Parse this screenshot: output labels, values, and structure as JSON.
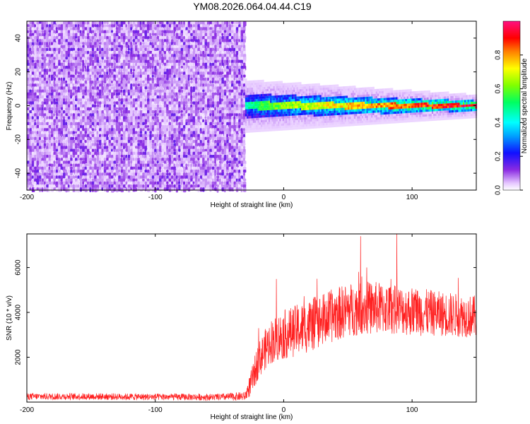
{
  "title": "YM08.2026.064.04.44.C19",
  "colors": {
    "snr_line": "#ff2020",
    "axis": "#000000"
  },
  "chart_data": [
    {
      "type": "heatmap",
      "name": "spectrogram",
      "xlabel": "Height of straight line (km)",
      "ylabel": "Frequency (Hz)",
      "xlim": [
        -200,
        150
      ],
      "ylim": [
        -50,
        50
      ],
      "xticks": [
        -200,
        -100,
        0,
        100
      ],
      "xtick_labels": [
        "-200",
        "-100",
        "0",
        "100"
      ],
      "yticks": [
        -40,
        -20,
        0,
        20,
        40
      ],
      "ytick_labels": [
        "-40",
        "-20",
        "0",
        "20",
        "40"
      ],
      "noise_region_x": [
        -200,
        -30
      ],
      "signal_region_x": [
        -30,
        150
      ],
      "signal_center_freq_hz": 0,
      "signal_start_amplitude": 0.45,
      "signal_end_amplitude": 0.98,
      "noise_amplitude_range": [
        0.0,
        0.15
      ],
      "colorbar": {
        "label": "Normalized spectral amplitude",
        "range": [
          0,
          1
        ],
        "ticks": [
          0.0,
          0.2,
          0.4,
          0.6,
          0.8
        ],
        "tick_labels": [
          "0.0",
          "0.2",
          "0.4",
          "0.6",
          "0.8"
        ],
        "colormap": "hsv-reversed (white, violet, blue, cyan, green, yellow, orange, red, magenta)"
      }
    },
    {
      "type": "line",
      "name": "snr",
      "xlabel": "Height of straight line (km)",
      "ylabel": "SNR (10 * v/v)",
      "xlim": [
        -200,
        150
      ],
      "ylim": [
        0,
        7500
      ],
      "xticks": [
        -200,
        -100,
        0,
        100
      ],
      "xtick_labels": [
        "-200",
        "-100",
        "0",
        "100"
      ],
      "yticks": [
        2000,
        4000,
        6000
      ],
      "ytick_labels": [
        "2000",
        "4000",
        "6000"
      ],
      "x": [
        -200,
        -150,
        -100,
        -50,
        -30,
        -25,
        -20,
        -15,
        -10,
        0,
        10,
        20,
        30,
        40,
        50,
        60,
        70,
        80,
        90,
        100,
        110,
        120,
        130,
        140,
        150
      ],
      "y": [
        250,
        250,
        230,
        220,
        260,
        900,
        1800,
        2300,
        2700,
        3000,
        3200,
        3400,
        3650,
        3900,
        4100,
        4200,
        4200,
        4150,
        4100,
        4050,
        4000,
        3950,
        3900,
        3850,
        3800
      ],
      "noise_amplitude": [
        150,
        150,
        150,
        150,
        200,
        600,
        800,
        900,
        1000,
        1100,
        1150,
        1200,
        1200,
        1200,
        1200,
        1200,
        1200,
        1150,
        1100,
        1100,
        1050,
        1000,
        1000,
        950,
        950
      ],
      "peak_value": 7400,
      "peak_x": 60
    }
  ]
}
